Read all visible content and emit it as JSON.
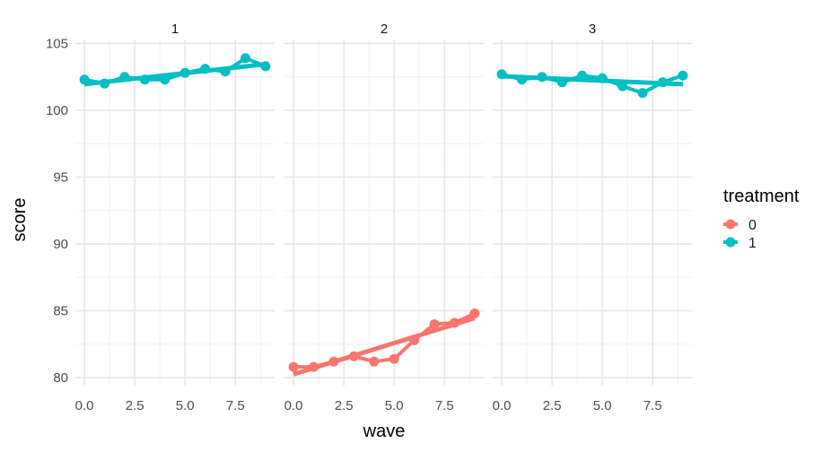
{
  "chart_data": {
    "type": "line",
    "xlabel": "wave",
    "ylabel": "score",
    "xlim": [
      -0.45,
      9.45
    ],
    "ylim": [
      79.4,
      105.3
    ],
    "x_ticks": [
      0,
      2.5,
      5,
      7.5
    ],
    "x_tick_labels": [
      "0.0",
      "2.5",
      "5.0",
      "7.5"
    ],
    "y_ticks": [
      80,
      85,
      90,
      95,
      100,
      105
    ],
    "y_tick_labels": [
      "80",
      "85",
      "90",
      "95",
      "100",
      "105"
    ],
    "grid": true,
    "legend": {
      "title": "treatment",
      "position": "right",
      "entries": [
        {
          "label": "0",
          "color": "#F8766D"
        },
        {
          "label": "1",
          "color": "#00BFC4"
        }
      ]
    },
    "facets": [
      {
        "label": "1",
        "series": [
          {
            "treatment": "1",
            "color": "#00BFC4",
            "x": [
              0,
              1,
              2,
              3,
              4,
              5,
              6,
              7,
              8,
              9
            ],
            "y": [
              102.3,
              102.0,
              102.5,
              102.3,
              102.3,
              102.8,
              103.1,
              102.9,
              103.9,
              103.3
            ],
            "fit": [
              [
                0,
                101.95
              ],
              [
                9,
                103.45
              ]
            ]
          }
        ]
      },
      {
        "label": "2",
        "series": [
          {
            "treatment": "0",
            "color": "#F8766D",
            "x": [
              0,
              1,
              2,
              3,
              4,
              5,
              6,
              7,
              8,
              9
            ],
            "y": [
              80.8,
              80.8,
              81.2,
              81.6,
              81.2,
              81.4,
              82.8,
              84.0,
              84.1,
              84.8
            ],
            "fit": [
              [
                0,
                80.25
              ],
              [
                9,
                84.45
              ]
            ]
          }
        ]
      },
      {
        "label": "3",
        "series": [
          {
            "treatment": "1",
            "color": "#00BFC4",
            "x": [
              0,
              1,
              2,
              3,
              4,
              5,
              6,
              7,
              8,
              9
            ],
            "y": [
              102.7,
              102.3,
              102.5,
              102.1,
              102.6,
              102.4,
              101.8,
              101.3,
              102.1,
              102.6
            ],
            "fit": [
              [
                0,
                102.55
              ],
              [
                9,
                101.95
              ]
            ]
          }
        ]
      }
    ]
  }
}
